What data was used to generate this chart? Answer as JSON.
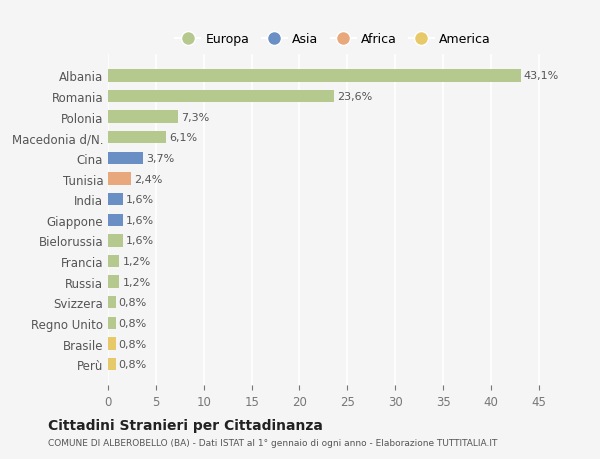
{
  "categories": [
    "Albania",
    "Romania",
    "Polonia",
    "Macedonia d/N.",
    "Cina",
    "Tunisia",
    "India",
    "Giappone",
    "Bielorussia",
    "Francia",
    "Russia",
    "Svizzera",
    "Regno Unito",
    "Brasile",
    "Perù"
  ],
  "values": [
    43.1,
    23.6,
    7.3,
    6.1,
    3.7,
    2.4,
    1.6,
    1.6,
    1.6,
    1.2,
    1.2,
    0.8,
    0.8,
    0.8,
    0.8
  ],
  "labels": [
    "43,1%",
    "23,6%",
    "7,3%",
    "6,1%",
    "3,7%",
    "2,4%",
    "1,6%",
    "1,6%",
    "1,6%",
    "1,2%",
    "1,2%",
    "0,8%",
    "0,8%",
    "0,8%",
    "0,8%"
  ],
  "colors": [
    "#b5c98e",
    "#b5c98e",
    "#b5c98e",
    "#b5c98e",
    "#6a8fc4",
    "#e8a87c",
    "#6a8fc4",
    "#6a8fc4",
    "#b5c98e",
    "#b5c98e",
    "#b5c98e",
    "#b5c98e",
    "#b5c98e",
    "#e8c96a",
    "#e8c96a"
  ],
  "legend_labels": [
    "Europa",
    "Asia",
    "Africa",
    "America"
  ],
  "legend_colors": [
    "#b5c98e",
    "#6a8fc4",
    "#e8a87c",
    "#e8c96a"
  ],
  "title": "Cittadini Stranieri per Cittadinanza",
  "subtitle": "COMUNE DI ALBEROBELLO (BA) - Dati ISTAT al 1° gennaio di ogni anno - Elaborazione TUTTITALIA.IT",
  "bg_color": "#f5f5f5",
  "xlim": [
    0,
    47
  ],
  "xticks": [
    0,
    5,
    10,
    15,
    20,
    25,
    30,
    35,
    40,
    45
  ]
}
